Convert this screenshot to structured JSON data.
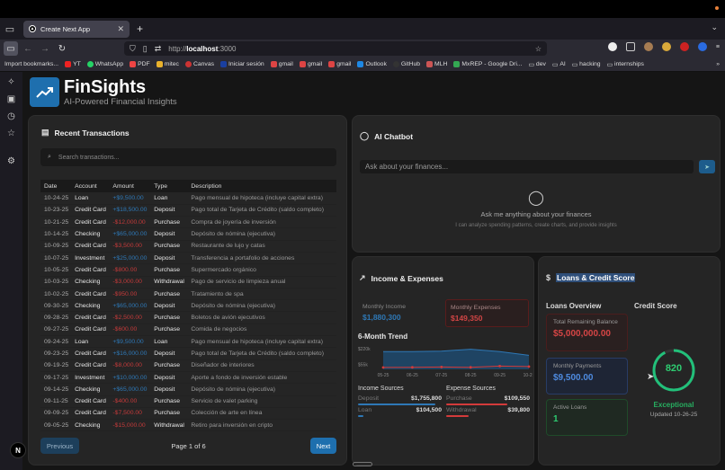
{
  "browser": {
    "tab_title": "Create Next App",
    "url_prefix": "http://",
    "url_host": "localhost",
    "url_port": ":3000",
    "bookmarks": [
      "Import bookmarks...",
      "YT",
      "WhatsApp",
      "PDF",
      "mitec",
      "Canvas",
      "Iniciar sesión",
      "gmail",
      "gmail",
      "gmail",
      "Outlook",
      "GitHub",
      "MLH",
      "MxREP - Google Dri...",
      "dev",
      "AI",
      "hacking",
      "internships"
    ]
  },
  "app": {
    "title": "FinSights",
    "tagline": "AI-Powered Financial Insights"
  },
  "transactions": {
    "title": "Recent Transactions",
    "search_placeholder": "Search transactions...",
    "columns": [
      "Date",
      "Account",
      "Amount",
      "Type",
      "Description"
    ],
    "rows": [
      {
        "date": "10-24-25",
        "account": "Loan",
        "amount": "+$9,500.00",
        "sign": "pos",
        "type": "Loan",
        "desc": "Pago mensual de hipoteca (incluye capital extra)"
      },
      {
        "date": "10-23-25",
        "account": "Credit Card",
        "amount": "+$18,500.00",
        "sign": "pos",
        "type": "Deposit",
        "desc": "Pago total de Tarjeta de Crédito (saldo completo)"
      },
      {
        "date": "10-21-25",
        "account": "Credit Card",
        "amount": "-$12,000.00",
        "sign": "neg",
        "type": "Purchase",
        "desc": "Compra de joyería de inversión"
      },
      {
        "date": "10-14-25",
        "account": "Checking",
        "amount": "+$65,000.00",
        "sign": "pos",
        "type": "Deposit",
        "desc": "Depósito de nómina (ejecutiva)"
      },
      {
        "date": "10-09-25",
        "account": "Credit Card",
        "amount": "-$3,500.00",
        "sign": "neg",
        "type": "Purchase",
        "desc": "Restaurante de lujo y catas"
      },
      {
        "date": "10-07-25",
        "account": "Investment",
        "amount": "+$25,000.00",
        "sign": "pos",
        "type": "Deposit",
        "desc": "Transferencia a portafolio de acciones"
      },
      {
        "date": "10-05-25",
        "account": "Credit Card",
        "amount": "-$800.00",
        "sign": "neg",
        "type": "Purchase",
        "desc": "Supermercado orgánico"
      },
      {
        "date": "10-03-25",
        "account": "Checking",
        "amount": "-$3,000.00",
        "sign": "neg",
        "type": "Withdrawal",
        "desc": "Pago de servicio de limpieza anual"
      },
      {
        "date": "10-02-25",
        "account": "Credit Card",
        "amount": "-$950.00",
        "sign": "neg",
        "type": "Purchase",
        "desc": "Tratamiento de spa"
      },
      {
        "date": "09-30-25",
        "account": "Checking",
        "amount": "+$65,000.00",
        "sign": "pos",
        "type": "Deposit",
        "desc": "Depósito de nómina (ejecutiva)"
      },
      {
        "date": "09-28-25",
        "account": "Credit Card",
        "amount": "-$2,500.00",
        "sign": "neg",
        "type": "Purchase",
        "desc": "Boletos de avión ejecutivos"
      },
      {
        "date": "09-27-25",
        "account": "Credit Card",
        "amount": "-$600.00",
        "sign": "neg",
        "type": "Purchase",
        "desc": "Comida de negocios"
      },
      {
        "date": "09-24-25",
        "account": "Loan",
        "amount": "+$9,500.00",
        "sign": "pos",
        "type": "Loan",
        "desc": "Pago mensual de hipoteca (incluye capital extra)"
      },
      {
        "date": "09-23-25",
        "account": "Credit Card",
        "amount": "+$16,000.00",
        "sign": "pos",
        "type": "Deposit",
        "desc": "Pago total de Tarjeta de Crédito (saldo completo)"
      },
      {
        "date": "09-19-25",
        "account": "Credit Card",
        "amount": "-$8,000.00",
        "sign": "neg",
        "type": "Purchase",
        "desc": "Diseñador de interiores"
      },
      {
        "date": "09-17-25",
        "account": "Investment",
        "amount": "+$10,000.00",
        "sign": "pos",
        "type": "Deposit",
        "desc": "Aporte a fondo de inversión estable"
      },
      {
        "date": "09-14-25",
        "account": "Checking",
        "amount": "+$65,000.00",
        "sign": "pos",
        "type": "Deposit",
        "desc": "Depósito de nómina (ejecutiva)"
      },
      {
        "date": "09-11-25",
        "account": "Credit Card",
        "amount": "-$400.00",
        "sign": "neg",
        "type": "Purchase",
        "desc": "Servicio de valet parking"
      },
      {
        "date": "09-09-25",
        "account": "Credit Card",
        "amount": "-$7,500.00",
        "sign": "neg",
        "type": "Purchase",
        "desc": "Colección de arte en línea"
      },
      {
        "date": "09-05-25",
        "account": "Checking",
        "amount": "-$15,000.00",
        "sign": "neg",
        "type": "Withdrawal",
        "desc": "Retiro para inversión en cripto"
      }
    ],
    "prev_label": "Previous",
    "next_label": "Next",
    "page_info": "Page 1 of 6"
  },
  "chatbot": {
    "title": "AI Chatbot",
    "input_placeholder": "Ask about your finances...",
    "empty_title": "Ask me anything about your finances",
    "empty_sub": "I can analyze spending patterns, create charts, and provide insights"
  },
  "income_expenses": {
    "title": "Income & Expenses",
    "monthly_income_label": "Monthly Income",
    "monthly_income": "$1,880,300",
    "monthly_expenses_label": "Monthly Expenses",
    "monthly_expenses": "$149,350",
    "trend_title": "6-Month Trend",
    "income_sources_title": "Income Sources",
    "income_sources": [
      {
        "label": "Deposit",
        "value": "$1,755,800",
        "pct": 93
      },
      {
        "label": "Loan",
        "value": "$104,500",
        "pct": 6
      }
    ],
    "expense_sources_title": "Expense Sources",
    "expense_sources": [
      {
        "label": "Purchase",
        "value": "$109,550",
        "pct": 73
      },
      {
        "label": "Withdrawal",
        "value": "$39,800",
        "pct": 27
      }
    ]
  },
  "chart_data": {
    "type": "area",
    "title": "6-Month Trend",
    "categories": [
      "05-25",
      "06-25",
      "07-25",
      "08-25",
      "09-25",
      "10-25"
    ],
    "series": [
      {
        "name": "Income",
        "color": "#2e78b6",
        "values": [
          190,
          190,
          195,
          215,
          190,
          150
        ]
      },
      {
        "name": "Expenses",
        "color": "#d33a3a",
        "values": [
          20,
          22,
          25,
          22,
          35,
          30
        ]
      }
    ],
    "yticks": [
      "$55k",
      "$220k"
    ],
    "ylim": [
      0,
      250
    ]
  },
  "loans": {
    "title_icon": "$",
    "title": "Loans & Credit Score",
    "overview_title": "Loans Overview",
    "total_label": "Total Remaining Balance",
    "total_value": "$5,000,000.00",
    "monthly_label": "Monthly Payments",
    "monthly_value": "$9,500.00",
    "active_label": "Active Loans",
    "active_value": "1",
    "credit_title": "Credit Score",
    "credit_score": "820",
    "credit_rating": "Exceptional",
    "credit_updated": "Updated 10-26-25"
  }
}
